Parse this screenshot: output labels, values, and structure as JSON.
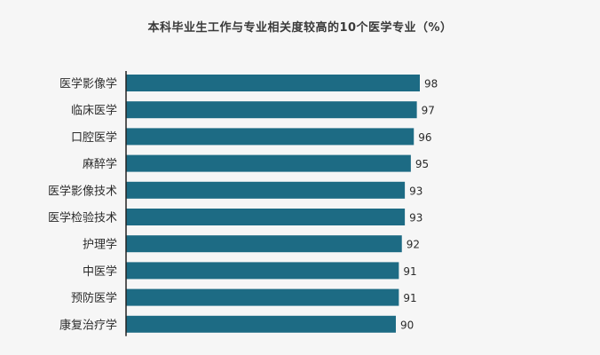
{
  "chart_data": {
    "type": "bar",
    "orientation": "horizontal",
    "title": "本科毕业生工作与专业相关度较高的10个医学专业（%）",
    "xlabel": "",
    "ylabel": "",
    "xlim": [
      0,
      98
    ],
    "grid": false,
    "legend": "none",
    "bar_color": "#1d6b84",
    "categories": [
      "医学影像学",
      "临床医学",
      "口腔医学",
      "麻醉学",
      "医学影像技术",
      "医学检验技术",
      "护理学",
      "中医学",
      "预防医学",
      "康复治疗学"
    ],
    "values": [
      98,
      97,
      96,
      95,
      93,
      93,
      92,
      91,
      91,
      90
    ]
  }
}
